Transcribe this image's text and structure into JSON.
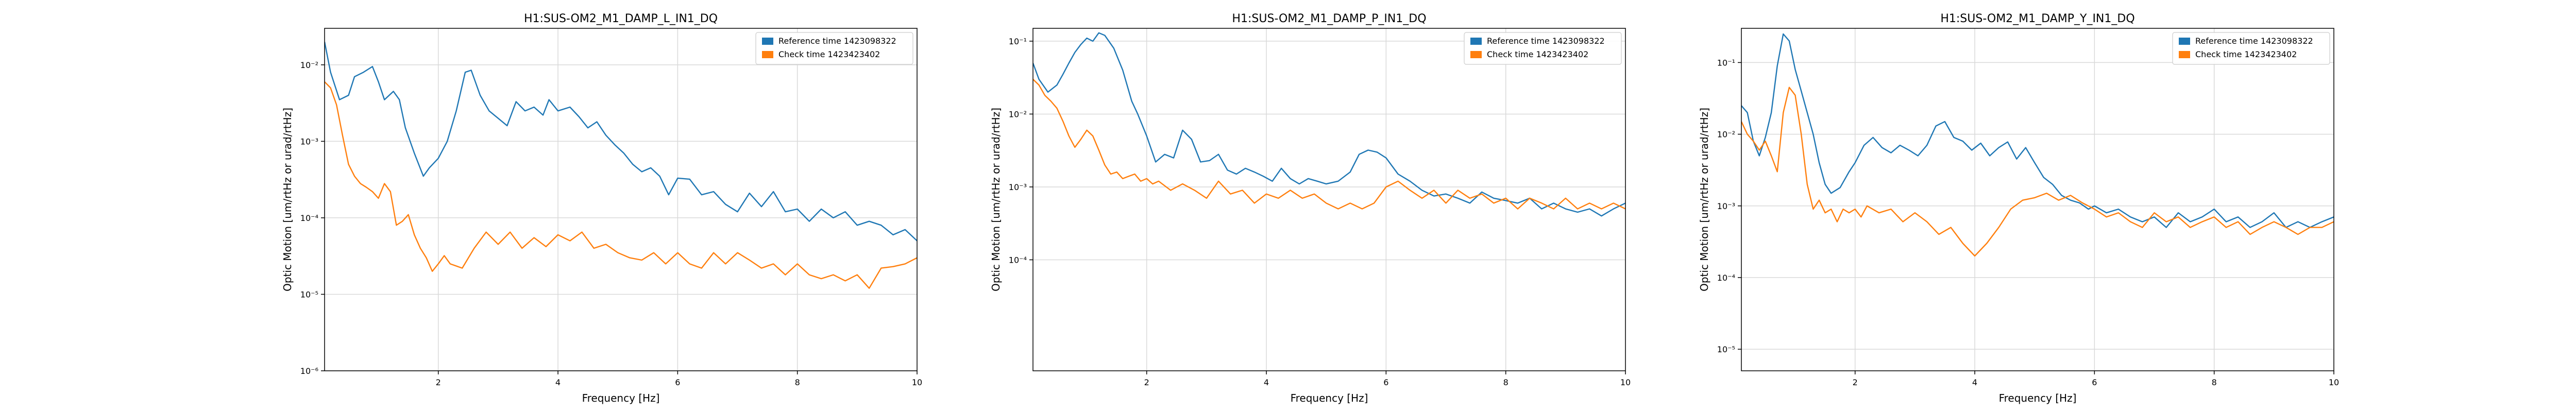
{
  "chart_data": [
    {
      "type": "line",
      "title": "H1:SUS-OM2_M1_DAMP_L_IN1_DQ",
      "xlabel": "Frequency [Hz]",
      "ylabel": "Optic Motion [um/rtHz or urad/rtHz]",
      "xscale": "linear",
      "yscale": "log",
      "xlim": [
        0.1,
        10
      ],
      "ylim": [
        1e-06,
        0.03
      ],
      "xticks": [
        "2",
        "4",
        "6",
        "8",
        "10"
      ],
      "yticks": [
        "10⁻⁶",
        "10⁻⁵",
        "10⁻⁴",
        "10⁻³",
        "10⁻²"
      ],
      "grid": true,
      "legend_position": "top-right",
      "series": [
        {
          "name": "Reference time 1423098322",
          "color": "#1f77b4",
          "x": [
            0.1,
            0.2,
            0.35,
            0.5,
            0.6,
            0.75,
            0.9,
            1.0,
            1.1,
            1.25,
            1.35,
            1.45,
            1.6,
            1.75,
            1.85,
            2.0,
            2.15,
            2.3,
            2.45,
            2.55,
            2.7,
            2.85,
            3.0,
            3.15,
            3.3,
            3.45,
            3.6,
            3.75,
            3.85,
            4.0,
            4.2,
            4.35,
            4.5,
            4.65,
            4.8,
            4.95,
            5.1,
            5.25,
            5.4,
            5.55,
            5.7,
            5.85,
            6.0,
            6.2,
            6.4,
            6.6,
            6.8,
            7.0,
            7.2,
            7.4,
            7.6,
            7.8,
            8.0,
            8.2,
            8.4,
            8.6,
            8.8,
            9.0,
            9.2,
            9.4,
            9.6,
            9.8,
            10.0
          ],
          "y": [
            0.02,
            0.008,
            0.0035,
            0.004,
            0.007,
            0.008,
            0.0095,
            0.006,
            0.0035,
            0.0045,
            0.0035,
            0.0015,
            0.0007,
            0.00035,
            0.00045,
            0.0006,
            0.001,
            0.0025,
            0.008,
            0.0085,
            0.004,
            0.0025,
            0.002,
            0.0016,
            0.0033,
            0.0025,
            0.0028,
            0.0022,
            0.0035,
            0.0025,
            0.0028,
            0.0021,
            0.0015,
            0.0018,
            0.0012,
            0.0009,
            0.0007,
            0.0005,
            0.0004,
            0.00045,
            0.00035,
            0.0002,
            0.00033,
            0.00032,
            0.0002,
            0.00022,
            0.00015,
            0.00012,
            0.00021,
            0.00014,
            0.00022,
            0.00012,
            0.00013,
            9e-05,
            0.00013,
            0.0001,
            0.00012,
            8e-05,
            9e-05,
            8e-05,
            6e-05,
            7e-05,
            5e-05
          ]
        },
        {
          "name": "Check time 1423423402",
          "color": "#ff7f0e",
          "x": [
            0.1,
            0.2,
            0.3,
            0.4,
            0.5,
            0.6,
            0.7,
            0.8,
            0.9,
            1.0,
            1.1,
            1.2,
            1.3,
            1.4,
            1.5,
            1.6,
            1.7,
            1.8,
            1.9,
            2.0,
            2.1,
            2.2,
            2.4,
            2.6,
            2.8,
            3.0,
            3.2,
            3.4,
            3.6,
            3.8,
            4.0,
            4.2,
            4.4,
            4.6,
            4.8,
            5.0,
            5.2,
            5.4,
            5.6,
            5.8,
            6.0,
            6.2,
            6.4,
            6.6,
            6.8,
            7.0,
            7.2,
            7.4,
            7.6,
            7.8,
            8.0,
            8.2,
            8.4,
            8.6,
            8.8,
            9.0,
            9.2,
            9.4,
            9.6,
            9.8,
            10.0
          ],
          "y": [
            0.006,
            0.005,
            0.003,
            0.0012,
            0.0005,
            0.00035,
            0.00028,
            0.00025,
            0.00022,
            0.00018,
            0.00028,
            0.00022,
            8e-05,
            9e-05,
            0.00011,
            6e-05,
            4e-05,
            3e-05,
            2e-05,
            2.5e-05,
            3.2e-05,
            2.5e-05,
            2.2e-05,
            4e-05,
            6.5e-05,
            4.5e-05,
            6.5e-05,
            4e-05,
            5.5e-05,
            4.2e-05,
            6e-05,
            5e-05,
            6.5e-05,
            4e-05,
            4.5e-05,
            3.5e-05,
            3e-05,
            2.8e-05,
            3.5e-05,
            2.5e-05,
            3.5e-05,
            2.5e-05,
            2.2e-05,
            3.5e-05,
            2.5e-05,
            3.5e-05,
            2.8e-05,
            2.2e-05,
            2.5e-05,
            1.8e-05,
            2.5e-05,
            1.8e-05,
            1.6e-05,
            1.8e-05,
            1.5e-05,
            1.8e-05,
            1.2e-05,
            2.2e-05,
            2.3e-05,
            2.5e-05,
            3e-05
          ]
        }
      ]
    },
    {
      "type": "line",
      "title": "H1:SUS-OM2_M1_DAMP_P_IN1_DQ",
      "xlabel": "Frequency [Hz]",
      "ylabel": "Optic Motion [um/rtHz or urad/rtHz]",
      "xscale": "linear",
      "yscale": "log",
      "xlim": [
        0.1,
        10
      ],
      "ylim": [
        3e-06,
        0.15
      ],
      "xticks": [
        "2",
        "4",
        "6",
        "8",
        "10"
      ],
      "yticks": [
        "10⁻⁴",
        "10⁻³",
        "10⁻²",
        "10⁻¹"
      ],
      "grid": true,
      "legend_position": "top-right",
      "series": [
        {
          "name": "Reference time 1423098322",
          "color": "#1f77b4",
          "x": [
            0.1,
            0.2,
            0.35,
            0.5,
            0.6,
            0.7,
            0.8,
            0.9,
            1.0,
            1.1,
            1.2,
            1.3,
            1.45,
            1.6,
            1.75,
            1.85,
            2.0,
            2.15,
            2.3,
            2.45,
            2.6,
            2.75,
            2.9,
            3.05,
            3.2,
            3.35,
            3.5,
            3.65,
            3.8,
            3.95,
            4.1,
            4.25,
            4.4,
            4.55,
            4.7,
            4.85,
            5.0,
            5.2,
            5.4,
            5.55,
            5.7,
            5.85,
            6.0,
            6.2,
            6.4,
            6.6,
            6.8,
            7.0,
            7.2,
            7.4,
            7.6,
            7.8,
            8.0,
            8.2,
            8.4,
            8.6,
            8.8,
            9.0,
            9.2,
            9.4,
            9.6,
            9.8,
            10.0
          ],
          "y": [
            0.05,
            0.03,
            0.02,
            0.025,
            0.035,
            0.05,
            0.07,
            0.09,
            0.11,
            0.1,
            0.13,
            0.12,
            0.08,
            0.04,
            0.015,
            0.01,
            0.005,
            0.0022,
            0.0028,
            0.0025,
            0.006,
            0.0045,
            0.0022,
            0.0023,
            0.0028,
            0.0017,
            0.0015,
            0.0018,
            0.0016,
            0.0014,
            0.0012,
            0.0018,
            0.0013,
            0.0011,
            0.0013,
            0.0012,
            0.0011,
            0.0012,
            0.0016,
            0.0028,
            0.0032,
            0.003,
            0.0025,
            0.0015,
            0.0012,
            0.0009,
            0.00075,
            0.0008,
            0.0007,
            0.0006,
            0.00085,
            0.0007,
            0.00065,
            0.0006,
            0.0007,
            0.0005,
            0.0006,
            0.0005,
            0.00045,
            0.0005,
            0.0004,
            0.0005,
            0.0006
          ]
        },
        {
          "name": "Check time 1423423402",
          "color": "#ff7f0e",
          "x": [
            0.1,
            0.2,
            0.3,
            0.4,
            0.5,
            0.6,
            0.7,
            0.8,
            0.9,
            1.0,
            1.1,
            1.2,
            1.3,
            1.4,
            1.5,
            1.6,
            1.7,
            1.8,
            1.9,
            2.0,
            2.1,
            2.2,
            2.4,
            2.6,
            2.8,
            3.0,
            3.2,
            3.4,
            3.6,
            3.8,
            4.0,
            4.2,
            4.4,
            4.6,
            4.8,
            5.0,
            5.2,
            5.4,
            5.6,
            5.8,
            6.0,
            6.2,
            6.4,
            6.6,
            6.8,
            7.0,
            7.2,
            7.4,
            7.6,
            7.8,
            8.0,
            8.2,
            8.4,
            8.6,
            8.8,
            9.0,
            9.2,
            9.4,
            9.6,
            9.8,
            10.0
          ],
          "y": [
            0.03,
            0.025,
            0.018,
            0.015,
            0.012,
            0.008,
            0.005,
            0.0035,
            0.0045,
            0.006,
            0.005,
            0.0032,
            0.002,
            0.0015,
            0.0016,
            0.0013,
            0.0014,
            0.0015,
            0.0012,
            0.0013,
            0.0011,
            0.0012,
            0.0009,
            0.0011,
            0.0009,
            0.0007,
            0.0012,
            0.0008,
            0.0009,
            0.0006,
            0.0008,
            0.0007,
            0.0009,
            0.0007,
            0.0008,
            0.0006,
            0.0005,
            0.0006,
            0.0005,
            0.0006,
            0.001,
            0.0012,
            0.0009,
            0.0007,
            0.0009,
            0.0006,
            0.0009,
            0.0007,
            0.0008,
            0.0006,
            0.0007,
            0.0005,
            0.0007,
            0.0006,
            0.0005,
            0.0007,
            0.0005,
            0.0006,
            0.0005,
            0.0006,
            0.0005
          ]
        }
      ]
    },
    {
      "type": "line",
      "title": "H1:SUS-OM2_M1_DAMP_Y_IN1_DQ",
      "xlabel": "Frequency [Hz]",
      "ylabel": "Optic Motion [um/rtHz or urad/rtHz]",
      "xscale": "linear",
      "yscale": "log",
      "xlim": [
        0.1,
        10
      ],
      "ylim": [
        5e-06,
        0.3
      ],
      "xticks": [
        "2",
        "4",
        "6",
        "8",
        "10"
      ],
      "yticks": [
        "10⁻⁵",
        "10⁻⁴",
        "10⁻³",
        "10⁻²",
        "10⁻¹"
      ],
      "grid": true,
      "legend_position": "top-right",
      "series": [
        {
          "name": "Reference time 1423098322",
          "color": "#1f77b4",
          "x": [
            0.1,
            0.2,
            0.3,
            0.4,
            0.5,
            0.6,
            0.7,
            0.8,
            0.9,
            1.0,
            1.1,
            1.2,
            1.3,
            1.4,
            1.5,
            1.6,
            1.75,
            1.9,
            2.0,
            2.15,
            2.3,
            2.45,
            2.6,
            2.75,
            2.9,
            3.05,
            3.2,
            3.35,
            3.5,
            3.65,
            3.8,
            3.95,
            4.1,
            4.25,
            4.4,
            4.55,
            4.7,
            4.85,
            5.0,
            5.15,
            5.3,
            5.45,
            5.6,
            5.75,
            5.9,
            6.0,
            6.2,
            6.4,
            6.6,
            6.8,
            7.0,
            7.2,
            7.4,
            7.6,
            7.8,
            8.0,
            8.2,
            8.4,
            8.6,
            8.8,
            9.0,
            9.2,
            9.4,
            9.6,
            9.8,
            10.0
          ],
          "y": [
            0.025,
            0.02,
            0.008,
            0.005,
            0.009,
            0.02,
            0.09,
            0.25,
            0.2,
            0.08,
            0.04,
            0.02,
            0.01,
            0.004,
            0.002,
            0.0015,
            0.0018,
            0.003,
            0.004,
            0.007,
            0.009,
            0.0065,
            0.0055,
            0.007,
            0.006,
            0.005,
            0.007,
            0.013,
            0.015,
            0.009,
            0.008,
            0.006,
            0.0075,
            0.005,
            0.0065,
            0.0078,
            0.0045,
            0.0065,
            0.004,
            0.0025,
            0.002,
            0.0014,
            0.0012,
            0.0011,
            0.0009,
            0.001,
            0.0008,
            0.0009,
            0.0007,
            0.0006,
            0.0007,
            0.0005,
            0.0008,
            0.0006,
            0.0007,
            0.0009,
            0.0006,
            0.0007,
            0.0005,
            0.0006,
            0.0008,
            0.0005,
            0.0006,
            0.0005,
            0.0006,
            0.0007
          ]
        },
        {
          "name": "Check time 1423423402",
          "color": "#ff7f0e",
          "x": [
            0.1,
            0.2,
            0.3,
            0.4,
            0.5,
            0.6,
            0.7,
            0.8,
            0.9,
            1.0,
            1.1,
            1.2,
            1.3,
            1.4,
            1.5,
            1.6,
            1.7,
            1.8,
            1.9,
            2.0,
            2.1,
            2.2,
            2.4,
            2.6,
            2.8,
            3.0,
            3.2,
            3.4,
            3.6,
            3.8,
            4.0,
            4.2,
            4.4,
            4.6,
            4.8,
            5.0,
            5.2,
            5.4,
            5.6,
            5.8,
            6.0,
            6.2,
            6.4,
            6.6,
            6.8,
            7.0,
            7.2,
            7.4,
            7.6,
            7.8,
            8.0,
            8.2,
            8.4,
            8.6,
            8.8,
            9.0,
            9.2,
            9.4,
            9.6,
            9.8,
            10.0
          ],
          "y": [
            0.015,
            0.01,
            0.008,
            0.006,
            0.008,
            0.005,
            0.003,
            0.02,
            0.045,
            0.035,
            0.01,
            0.002,
            0.0009,
            0.0012,
            0.0008,
            0.0009,
            0.0006,
            0.0009,
            0.0008,
            0.0009,
            0.0007,
            0.001,
            0.0008,
            0.0009,
            0.0006,
            0.0008,
            0.0006,
            0.0004,
            0.0005,
            0.0003,
            0.0002,
            0.0003,
            0.0005,
            0.0009,
            0.0012,
            0.0013,
            0.0015,
            0.0012,
            0.0014,
            0.0011,
            0.0009,
            0.0007,
            0.0008,
            0.0006,
            0.0005,
            0.0008,
            0.0006,
            0.0007,
            0.0005,
            0.0006,
            0.0007,
            0.0005,
            0.0006,
            0.0004,
            0.0005,
            0.0006,
            0.0005,
            0.0004,
            0.0005,
            0.0005,
            0.0006
          ]
        }
      ]
    }
  ]
}
